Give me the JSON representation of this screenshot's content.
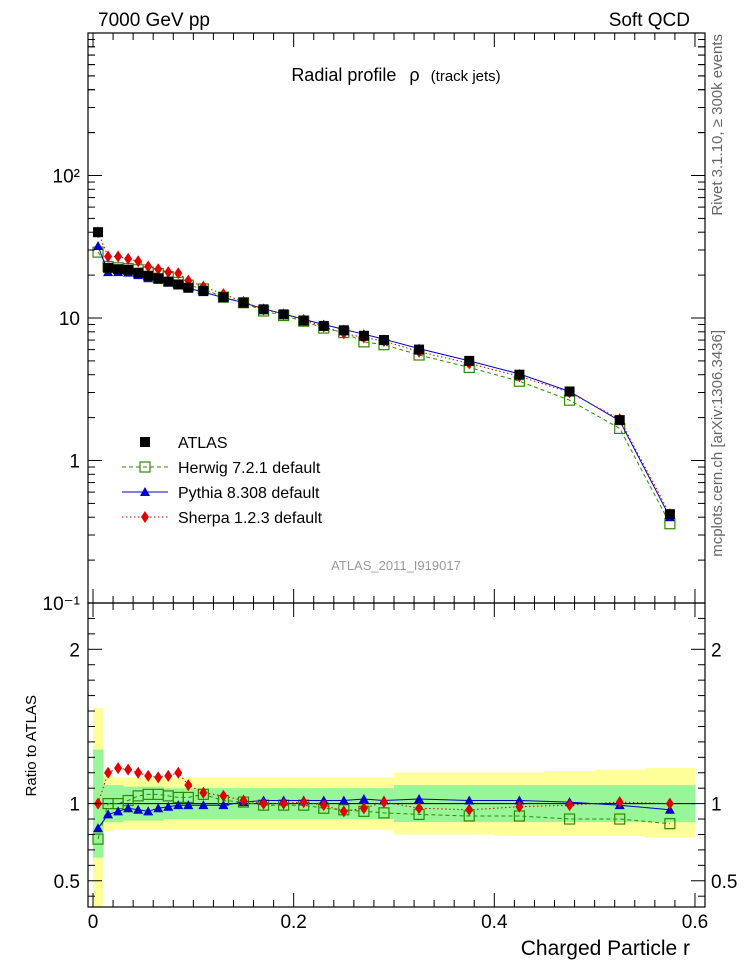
{
  "header": {
    "left": "7000 GeV pp",
    "right": "Soft QCD"
  },
  "side_labels": {
    "rivet": "Rivet 3.1.10, ≥ 300k events",
    "mcplots": "mcplots.cern.ch [arXiv:1306.3436]"
  },
  "watermark": "ATLAS_2011_I919017",
  "colors": {
    "atlas": "#000000",
    "herwig": "#2e8b00",
    "pythia": "#0000cc",
    "sherpa": "#e00000",
    "band_inner": "#98f598",
    "band_outer": "#ffff99"
  },
  "chart_data": [
    {
      "type": "scatter",
      "title": "Radial profile",
      "title_symbol": "ρ",
      "title_suffix": "(track jets)",
      "xlabel": "Charged Particle r",
      "ylabel": "",
      "log_y": true,
      "xlim": [
        -0.005,
        0.61
      ],
      "ylim": [
        0.1,
        1000
      ],
      "y_tick_labels": [
        "10⁻¹",
        "1",
        "10",
        "10²"
      ],
      "legend_position": "bottom-left",
      "x": [
        0.005,
        0.015,
        0.025,
        0.035,
        0.045,
        0.055,
        0.065,
        0.075,
        0.085,
        0.095,
        0.11,
        0.13,
        0.15,
        0.17,
        0.19,
        0.21,
        0.23,
        0.25,
        0.27,
        0.29,
        0.325,
        0.375,
        0.425,
        0.475,
        0.525,
        0.575
      ],
      "series": [
        {
          "name": "ATLAS",
          "marker": "filled-square",
          "values": [
            40,
            22.5,
            22,
            21.8,
            20.8,
            19.8,
            19,
            18,
            17.2,
            16.3,
            15.5,
            14,
            12.8,
            11.5,
            10.6,
            9.6,
            8.8,
            8.2,
            7.5,
            7,
            6,
            5,
            4,
            3.05,
            1.92,
            0.42
          ]
        },
        {
          "name": "Herwig 7.2.1 default",
          "marker": "open-square",
          "values": [
            29,
            23,
            22.5,
            22.2,
            21.8,
            21,
            20.5,
            19.5,
            17.8,
            17,
            16,
            14,
            12.8,
            11.2,
            10.4,
            9.5,
            8.5,
            7.9,
            6.8,
            6.5,
            5.5,
            4.5,
            3.6,
            2.65,
            1.68,
            0.36
          ]
        },
        {
          "name": "Pythia 8.308 default",
          "marker": "filled-triangle",
          "values": [
            32,
            21,
            21,
            20.8,
            20,
            19,
            18.5,
            17.7,
            17,
            16.2,
            15.2,
            13.9,
            12.8,
            11.6,
            10.7,
            9.8,
            9,
            8.3,
            7.7,
            7.1,
            6.1,
            5,
            4.05,
            3.05,
            1.9,
            0.4
          ]
        },
        {
          "name": "Sherpa 1.2.3 default",
          "marker": "filled-diamond",
          "values": [
            40,
            27,
            27,
            26,
            25,
            23,
            22,
            21,
            20.6,
            18.3,
            16.6,
            14.7,
            13,
            11.5,
            10.6,
            9.7,
            8.7,
            7.8,
            7.3,
            6.9,
            5.8,
            4.8,
            3.9,
            3,
            1.95,
            0.42
          ]
        }
      ]
    },
    {
      "type": "scatter",
      "title": "",
      "xlabel": "Charged Particle r",
      "ylabel": "Ratio to ATLAS",
      "xlim": [
        -0.005,
        0.61
      ],
      "ylim": [
        0.33,
        2.3
      ],
      "x_ticks": [
        0,
        0.2,
        0.4,
        0.6
      ],
      "x_tick_labels": [
        "0",
        "0.2",
        "0.4",
        "0.6"
      ],
      "y_ticks": [
        0.5,
        1,
        2
      ],
      "y_tick_labels": [
        "0.5",
        "1",
        "2"
      ],
      "x": [
        0.005,
        0.015,
        0.025,
        0.035,
        0.045,
        0.055,
        0.065,
        0.075,
        0.085,
        0.095,
        0.11,
        0.13,
        0.15,
        0.17,
        0.19,
        0.21,
        0.23,
        0.25,
        0.27,
        0.29,
        0.325,
        0.375,
        0.425,
        0.475,
        0.525,
        0.575
      ],
      "band_edges": [
        0,
        0.01,
        0.02,
        0.03,
        0.04,
        0.05,
        0.06,
        0.07,
        0.08,
        0.09,
        0.1,
        0.12,
        0.14,
        0.16,
        0.18,
        0.2,
        0.22,
        0.24,
        0.26,
        0.28,
        0.3,
        0.35,
        0.4,
        0.45,
        0.5,
        0.55,
        0.6
      ],
      "band_inner": [
        [
          0.65,
          1.35
        ],
        [
          0.88,
          1.12
        ],
        [
          0.88,
          1.12
        ],
        [
          0.89,
          1.11
        ],
        [
          0.89,
          1.11
        ],
        [
          0.89,
          1.11
        ],
        [
          0.89,
          1.11
        ],
        [
          0.9,
          1.1
        ],
        [
          0.9,
          1.1
        ],
        [
          0.9,
          1.1
        ],
        [
          0.9,
          1.1
        ],
        [
          0.9,
          1.1
        ],
        [
          0.9,
          1.1
        ],
        [
          0.9,
          1.1
        ],
        [
          0.9,
          1.1
        ],
        [
          0.9,
          1.1
        ],
        [
          0.9,
          1.1
        ],
        [
          0.9,
          1.1
        ],
        [
          0.9,
          1.1
        ],
        [
          0.9,
          1.1
        ],
        [
          0.88,
          1.12
        ],
        [
          0.88,
          1.12
        ],
        [
          0.88,
          1.12
        ],
        [
          0.88,
          1.12
        ],
        [
          0.88,
          1.12
        ],
        [
          0.88,
          1.12
        ]
      ],
      "band_outer": [
        [
          0.3,
          1.62
        ],
        [
          0.82,
          1.18
        ],
        [
          0.83,
          1.17
        ],
        [
          0.83,
          1.17
        ],
        [
          0.83,
          1.17
        ],
        [
          0.83,
          1.17
        ],
        [
          0.83,
          1.17
        ],
        [
          0.83,
          1.17
        ],
        [
          0.83,
          1.17
        ],
        [
          0.83,
          1.17
        ],
        [
          0.83,
          1.17
        ],
        [
          0.83,
          1.17
        ],
        [
          0.83,
          1.17
        ],
        [
          0.83,
          1.17
        ],
        [
          0.83,
          1.17
        ],
        [
          0.83,
          1.17
        ],
        [
          0.83,
          1.17
        ],
        [
          0.83,
          1.17
        ],
        [
          0.83,
          1.17
        ],
        [
          0.83,
          1.17
        ],
        [
          0.8,
          1.2
        ],
        [
          0.8,
          1.2
        ],
        [
          0.79,
          1.2
        ],
        [
          0.79,
          1.21
        ],
        [
          0.79,
          1.22
        ],
        [
          0.78,
          1.23
        ]
      ],
      "series": [
        {
          "name": "ATLAS",
          "marker": "line",
          "values": [
            1,
            1,
            1,
            1,
            1,
            1,
            1,
            1,
            1,
            1,
            1,
            1,
            1,
            1,
            1,
            1,
            1,
            1,
            1,
            1,
            1,
            1,
            1,
            1,
            1,
            1
          ]
        },
        {
          "name": "Herwig 7.2.1 default",
          "marker": "open-square",
          "values": [
            0.77,
            1.0,
            1.0,
            1.02,
            1.05,
            1.06,
            1.06,
            1.05,
            1.04,
            1.04,
            1.06,
            1.02,
            1.01,
            0.99,
            0.99,
            0.99,
            0.97,
            0.96,
            0.95,
            0.94,
            0.93,
            0.92,
            0.92,
            0.9,
            0.9,
            0.87
          ]
        },
        {
          "name": "Pythia 8.308 default",
          "marker": "filled-triangle",
          "values": [
            0.84,
            0.93,
            0.95,
            0.97,
            0.96,
            0.95,
            0.97,
            0.98,
            0.99,
            0.99,
            0.99,
            0.99,
            1.01,
            1.02,
            1.02,
            1.02,
            1.02,
            1.02,
            1.03,
            1.02,
            1.03,
            1.02,
            1.02,
            1.01,
            0.99,
            0.96
          ]
        },
        {
          "name": "Sherpa 1.2.3 default",
          "marker": "filled-diamond",
          "values": [
            1.0,
            1.2,
            1.23,
            1.22,
            1.2,
            1.18,
            1.17,
            1.18,
            1.2,
            1.12,
            1.07,
            1.05,
            1.02,
            1.0,
            1.0,
            1.01,
            0.99,
            0.95,
            0.97,
            1.01,
            0.97,
            0.96,
            0.98,
            0.99,
            1.01,
            1.0
          ]
        }
      ]
    }
  ]
}
